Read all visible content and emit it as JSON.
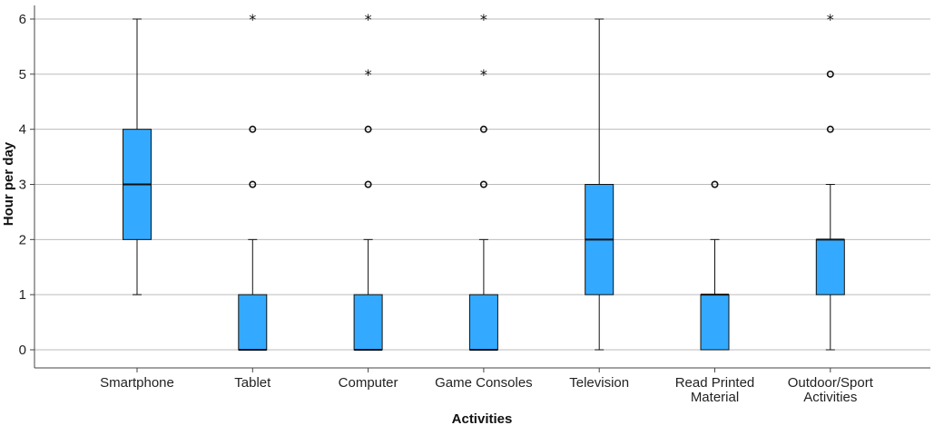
{
  "chart_data": {
    "type": "boxplot",
    "xlabel": "Activities",
    "ylabel": "Hour per day",
    "ylim": [
      0,
      6
    ],
    "yticks": [
      "0",
      "1",
      "2",
      "3",
      "4",
      "5",
      "6"
    ],
    "grid": "horizontal",
    "colors": {
      "box": "#33aaff",
      "line": "#111111",
      "grid": "#bbbbbb",
      "axis": "#444444"
    },
    "categories": [
      {
        "label": [
          "Smartphone"
        ],
        "min": 1,
        "q1": 2,
        "median": 3,
        "q3": 4,
        "max": 6,
        "outliers": [],
        "extremes": []
      },
      {
        "label": [
          "Tablet"
        ],
        "min": 0,
        "q1": 0,
        "median": 0,
        "q3": 1,
        "max": 2,
        "outliers": [
          3,
          4
        ],
        "extremes": [
          6
        ]
      },
      {
        "label": [
          "Computer"
        ],
        "min": 0,
        "q1": 0,
        "median": 0,
        "q3": 1,
        "max": 2,
        "outliers": [
          3,
          4
        ],
        "extremes": [
          5,
          6
        ]
      },
      {
        "label": [
          "Game Consoles"
        ],
        "min": 0,
        "q1": 0,
        "median": 0,
        "q3": 1,
        "max": 2,
        "outliers": [
          3,
          4
        ],
        "extremes": [
          5,
          6
        ]
      },
      {
        "label": [
          "Television"
        ],
        "min": 0,
        "q1": 1,
        "median": 2,
        "q3": 3,
        "max": 6,
        "outliers": [],
        "extremes": []
      },
      {
        "label": [
          "Read Printed",
          "Material"
        ],
        "min": 0,
        "q1": 0,
        "median": 1,
        "q3": 1,
        "max": 2,
        "outliers": [
          3
        ],
        "extremes": []
      },
      {
        "label": [
          "Outdoor/Sport",
          "Activities"
        ],
        "min": 0,
        "q1": 1,
        "median": 2,
        "q3": 2,
        "max": 3,
        "outliers": [
          4,
          5
        ],
        "extremes": [
          6
        ]
      }
    ]
  }
}
